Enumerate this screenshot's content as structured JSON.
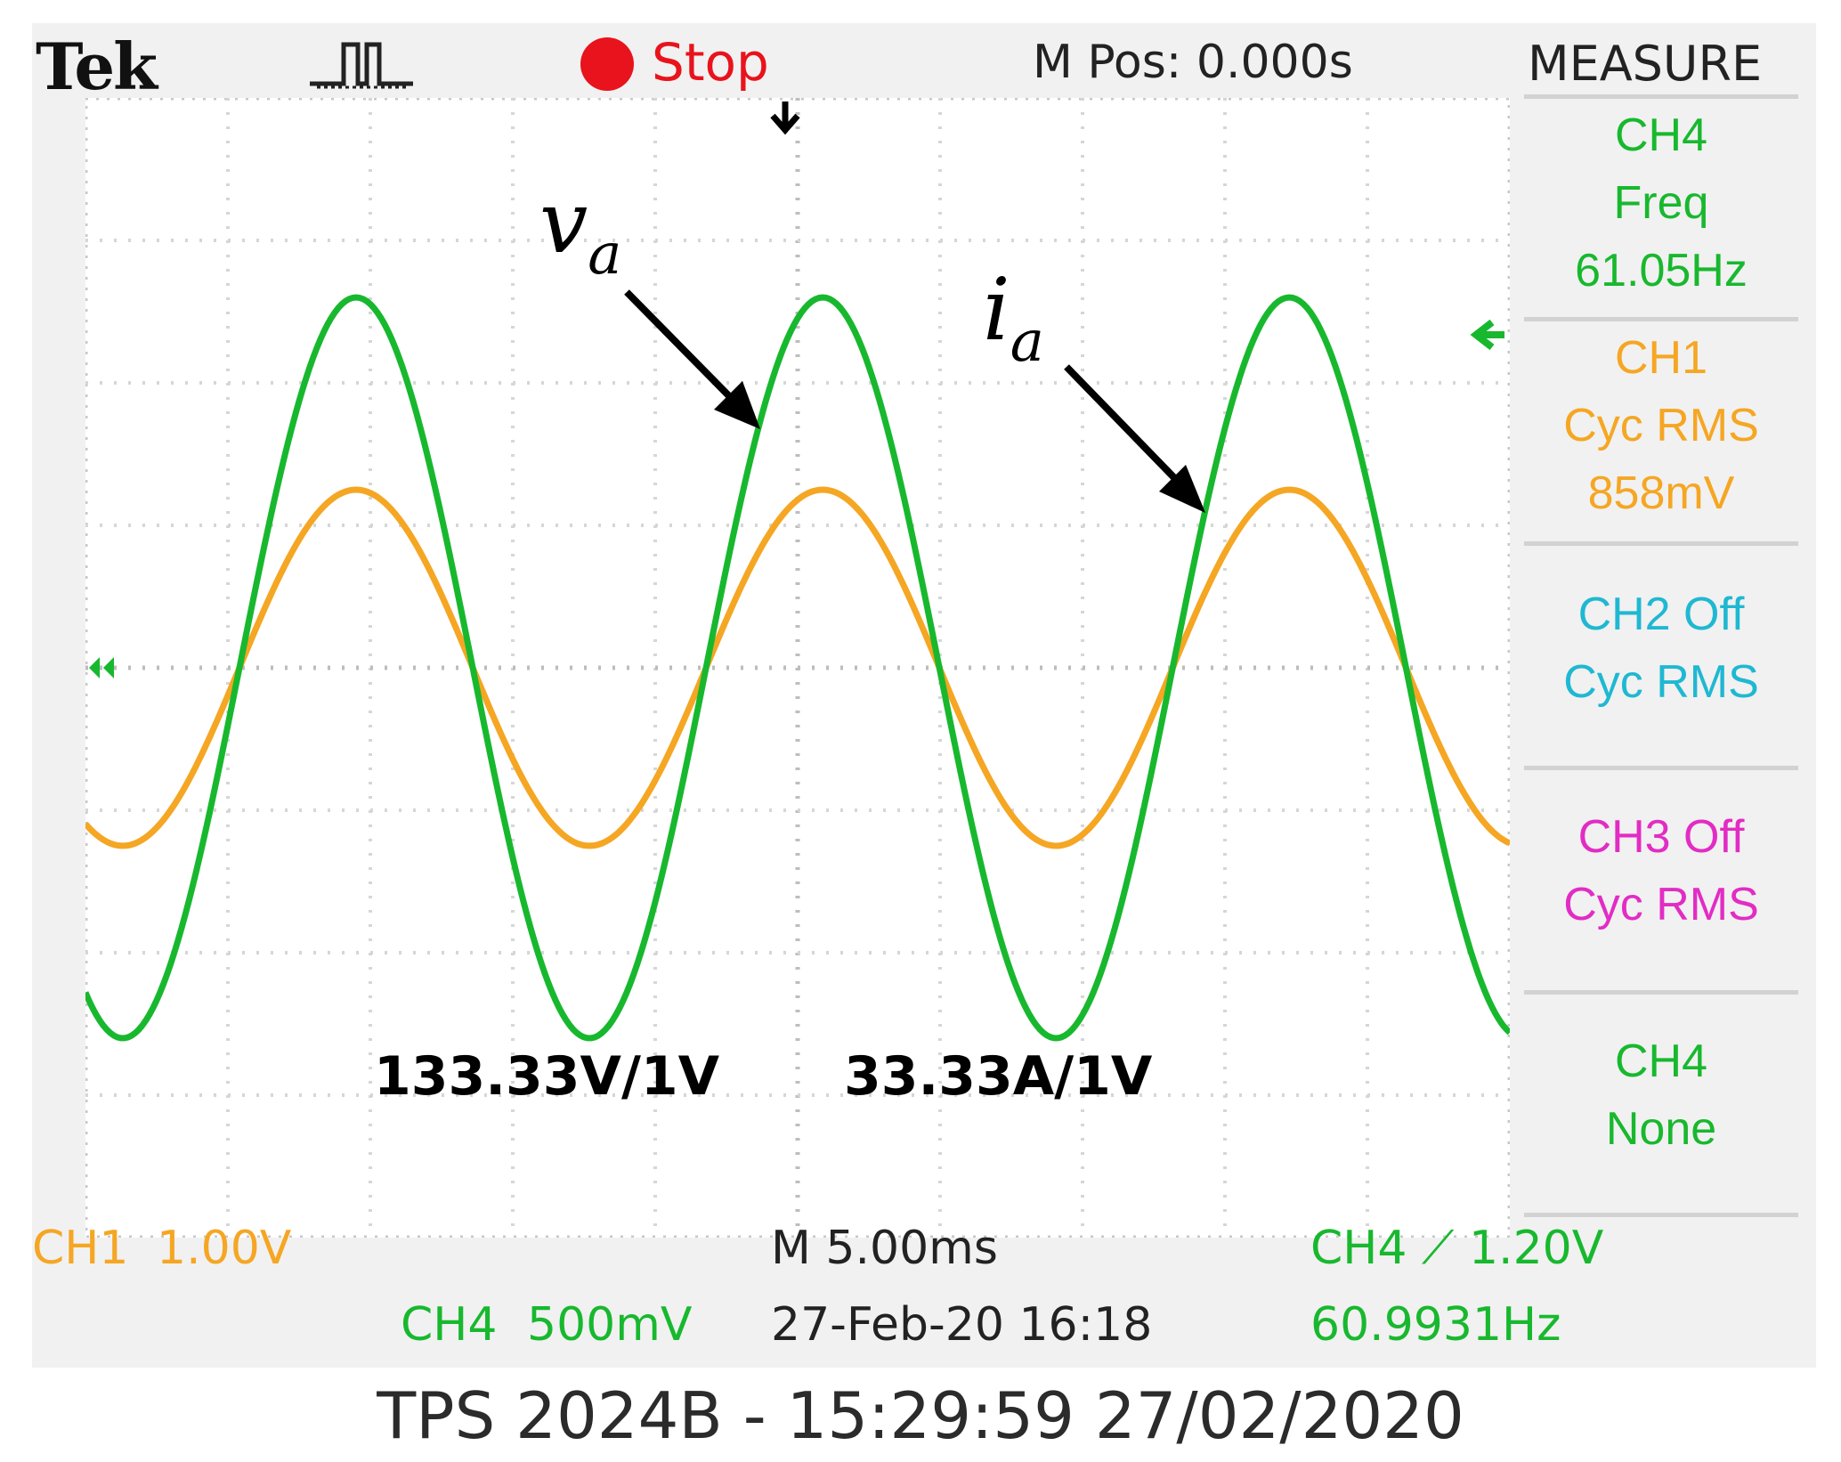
{
  "header": {
    "brand": "Tek",
    "trigger_icon": "pulse-trigger-icon",
    "run_state": "Stop",
    "run_state_color": "#e8131c",
    "m_pos": "M Pos: 0.000s",
    "menu_title": "MEASURE"
  },
  "measure": [
    {
      "lines": [
        "CH4",
        "Freq",
        "61.05Hz"
      ],
      "color": "#18b82e"
    },
    {
      "lines": [
        "CH1",
        "Cyc RMS",
        "858mV"
      ],
      "color": "#f5a623"
    },
    {
      "lines": [
        "CH2 Off",
        "Cyc RMS"
      ],
      "color": "#1fb8d2"
    },
    {
      "lines": [
        "CH3 Off",
        "Cyc RMS"
      ],
      "color": "#e22cc4"
    },
    {
      "lines": [
        "CH4",
        "None"
      ],
      "color": "#18b82e"
    }
  ],
  "footer": {
    "ch1": "CH1",
    "ch1_scale": "1.00V",
    "ch4": "CH4",
    "ch4_scale": "500mV",
    "timebase": "M 5.00ms",
    "datetime": "27-Feb-20 16:18",
    "trigger": "CH4 ⟋ 1.20V",
    "trigger_freq": "60.9931Hz"
  },
  "annotations": {
    "voltage_label": "v",
    "voltage_sub": "a",
    "current_label": "i",
    "current_sub": "a",
    "voltage_scale": "133.33V/1V",
    "current_scale": "33.33A/1V"
  },
  "caption": "TPS 2024B - 15:29:59   27/02/2020",
  "colors": {
    "ch1": "#f5a623",
    "ch4": "#18b82e",
    "ch2": "#1fb8d2",
    "ch3": "#e22cc4"
  },
  "chart_data": {
    "type": "line",
    "x_unit": "ms",
    "x_per_div": 5,
    "divisions_x": 10,
    "divisions_y": 8,
    "series": [
      {
        "name": "CH4",
        "amplitude_div": 2.6,
        "period_ms": 16.38,
        "peak_time_ms": 9.5,
        "offset_div": 0
      },
      {
        "name": "CH1",
        "amplitude_div": 1.25,
        "period_ms": 16.38,
        "peak_time_ms": 9.5,
        "offset_div": 0
      }
    ]
  }
}
